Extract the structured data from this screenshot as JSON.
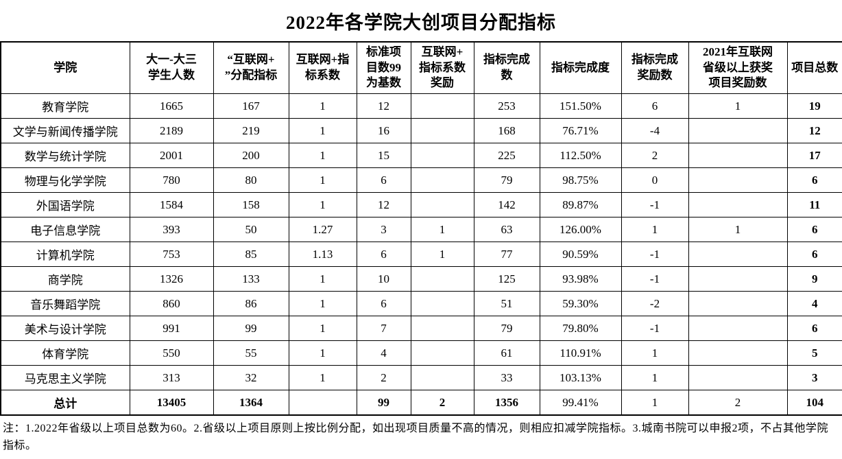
{
  "title": "2022年各学院大创项目分配指标",
  "table": {
    "columns": [
      "学院",
      "大一-大三\n学生人数",
      "“互联网+\n”分配指标",
      "互联网+指\n标系数",
      "标准项\n目数99\n为基数",
      "互联网+\n指标系数\n奖励",
      "指标完成\n数",
      "指标完成度",
      "指标完成\n奖励数",
      "2021年互联网\n省级以上获奖\n项目奖励数",
      "项目总数"
    ],
    "rows": [
      [
        "教育学院",
        "1665",
        "167",
        "1",
        "12",
        "",
        "253",
        "151.50%",
        "6",
        "1",
        "19"
      ],
      [
        "文学与新闻传播学院",
        "2189",
        "219",
        "1",
        "16",
        "",
        "168",
        "76.71%",
        "-4",
        "",
        "12"
      ],
      [
        "数学与统计学院",
        "2001",
        "200",
        "1",
        "15",
        "",
        "225",
        "112.50%",
        "2",
        "",
        "17"
      ],
      [
        "物理与化学学院",
        "780",
        "80",
        "1",
        "6",
        "",
        "79",
        "98.75%",
        "0",
        "",
        "6"
      ],
      [
        "外国语学院",
        "1584",
        "158",
        "1",
        "12",
        "",
        "142",
        "89.87%",
        "-1",
        "",
        "11"
      ],
      [
        "电子信息学院",
        "393",
        "50",
        "1.27",
        "3",
        "1",
        "63",
        "126.00%",
        "1",
        "1",
        "6"
      ],
      [
        "计算机学院",
        "753",
        "85",
        "1.13",
        "6",
        "1",
        "77",
        "90.59%",
        "-1",
        "",
        "6"
      ],
      [
        "商学院",
        "1326",
        "133",
        "1",
        "10",
        "",
        "125",
        "93.98%",
        "-1",
        "",
        "9"
      ],
      [
        "音乐舞蹈学院",
        "860",
        "86",
        "1",
        "6",
        "",
        "51",
        "59.30%",
        "-2",
        "",
        "4"
      ],
      [
        "美术与设计学院",
        "991",
        "99",
        "1",
        "7",
        "",
        "79",
        "79.80%",
        "-1",
        "",
        "6"
      ],
      [
        "体育学院",
        "550",
        "55",
        "1",
        "4",
        "",
        "61",
        "110.91%",
        "1",
        "",
        "5"
      ],
      [
        "马克思主义学院",
        "313",
        "32",
        "1",
        "2",
        "",
        "33",
        "103.13%",
        "1",
        "",
        "3"
      ]
    ],
    "total_row": [
      "总计",
      "13405",
      "1364",
      "",
      "99",
      "2",
      "1356",
      "99.41%",
      "1",
      "2",
      "104"
    ],
    "total_row_bold_cols": [
      0,
      1,
      2,
      4,
      5,
      6,
      10
    ]
  },
  "note": "注：1.2022年省级以上项目总数为60。2.省级以上项目原则上按比例分配，如出现项目质量不高的情况，则相应扣减学院指标。3.城南书院可以申报2项，不占其他学院指标。"
}
